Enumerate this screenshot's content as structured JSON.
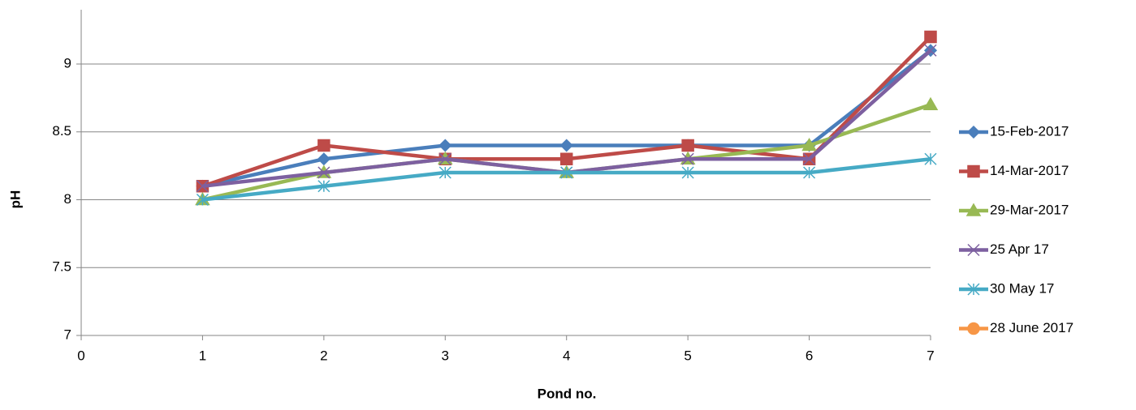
{
  "chart_data": {
    "type": "line",
    "x_label": "Pond no.",
    "y_label": "pH",
    "x": [
      1,
      2,
      3,
      4,
      5,
      6,
      7
    ],
    "series": [
      {
        "name": "15-Feb-2017",
        "color": "#4a7ebb",
        "marker": "diamond",
        "values": [
          8.1,
          8.3,
          8.4,
          8.4,
          8.4,
          8.4,
          9.1
        ]
      },
      {
        "name": "14-Mar-2017",
        "color": "#be4b48",
        "marker": "square",
        "values": [
          8.1,
          8.4,
          8.3,
          8.3,
          8.4,
          8.3,
          9.2
        ]
      },
      {
        "name": "29-Mar-2017",
        "color": "#98b954",
        "marker": "triangle",
        "values": [
          8.0,
          8.2,
          8.3,
          8.2,
          8.3,
          8.4,
          8.7
        ]
      },
      {
        "name": "25 Apr 17",
        "color": "#7d60a0",
        "marker": "x",
        "values": [
          8.1,
          8.2,
          8.3,
          8.2,
          8.3,
          8.3,
          9.1
        ]
      },
      {
        "name": "30 May 17",
        "color": "#46aac5",
        "marker": "star",
        "values": [
          8.0,
          8.1,
          8.2,
          8.2,
          8.2,
          8.2,
          8.3
        ]
      },
      {
        "name": "28 June 2017",
        "color": "#f79646",
        "marker": "circle",
        "values": [
          null,
          null,
          null,
          null,
          null,
          null,
          null
        ]
      }
    ],
    "xlim": [
      0,
      7
    ],
    "xticks": [
      0,
      1,
      2,
      3,
      4,
      5,
      6,
      7
    ],
    "ylim": [
      7,
      9.4
    ],
    "yticks": [
      7,
      7.5,
      8,
      8.5,
      9
    ],
    "grid": true,
    "legend": "right"
  }
}
